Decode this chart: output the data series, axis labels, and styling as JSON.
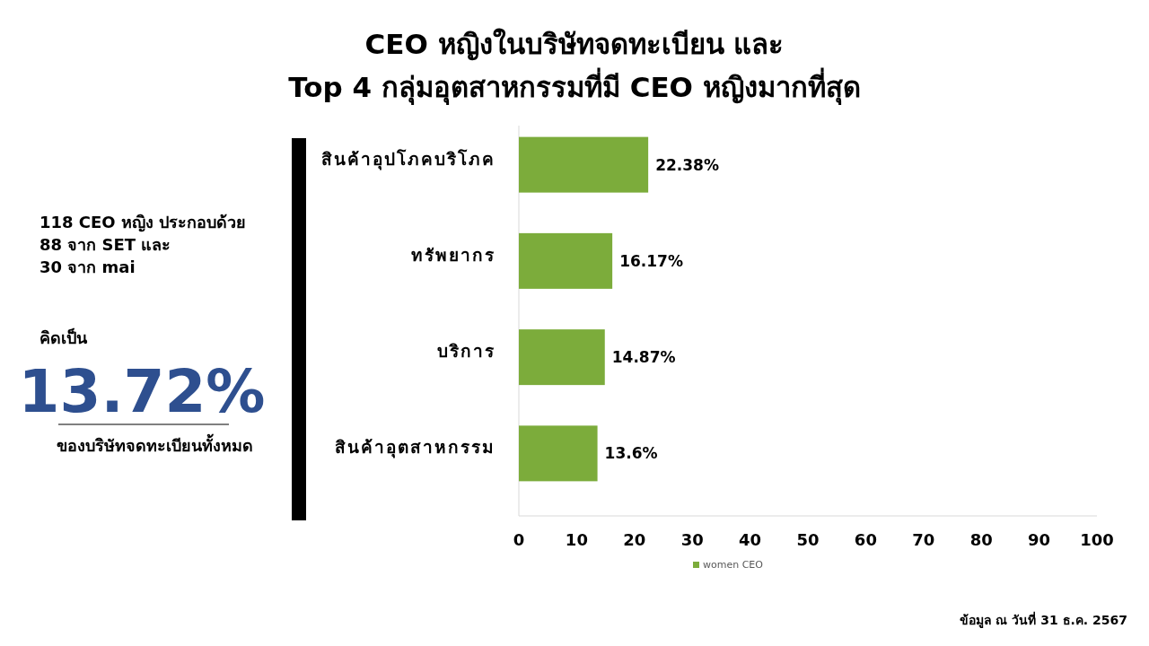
{
  "chart_data": {
    "type": "bar",
    "orientation": "horizontal",
    "title": "CEO หญิงในบริษัทจดทะเบียน และ\nTop 4 กลุ่มอุตสาหกรรมที่มี CEO หญิงมากที่สุด",
    "categories": [
      "สินค้าอุปโภคบริโภค",
      "ทรัพยากร",
      "บริการ",
      "สินค้าอุตสาหกรรม"
    ],
    "series": [
      {
        "name": "women CEO",
        "color": "#7cac3b",
        "values": [
          22.38,
          16.17,
          14.87,
          13.6
        ],
        "value_labels": [
          "22.38%",
          "16.17%",
          "14.87%",
          "13.6%"
        ]
      }
    ],
    "xlim": [
      0,
      100
    ],
    "xticks": [
      0,
      10,
      20,
      30,
      40,
      50,
      60,
      70,
      80,
      90,
      100
    ],
    "grid": false,
    "legend": "bottom",
    "annotations": [
      "118 CEO หญิง ประกอบด้วย",
      "88 จาก SET และ",
      "30 จาก mai",
      "คิดเป็น",
      "13.72%",
      "ของบริษัทจดทะเบียนทั้งหมด",
      "ข้อมูล ณ วันที่ 31 ธ.ค. 2567"
    ]
  }
}
